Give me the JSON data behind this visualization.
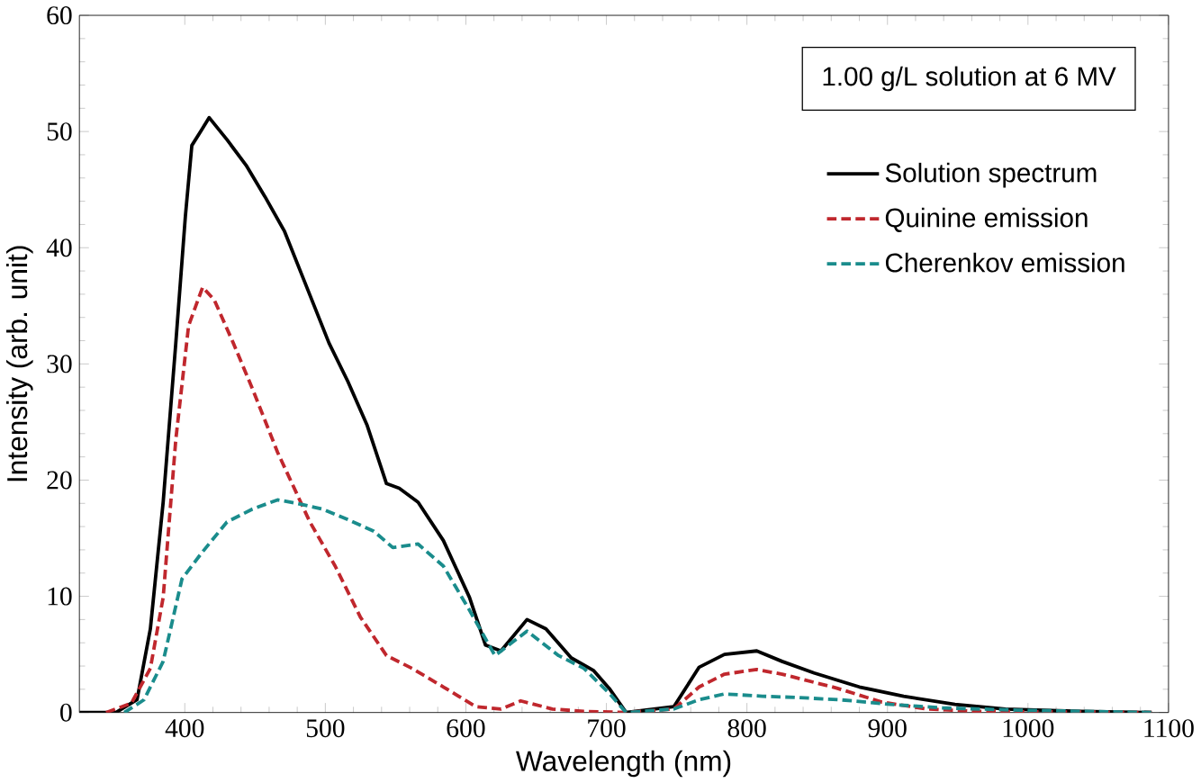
{
  "chart_data": {
    "type": "line",
    "xlabel": "Wavelength (nm)",
    "ylabel": "Intensity (arb. unit)",
    "annotations": [
      "1.00 g/L solution at 6 MV"
    ],
    "xlim": [
      325,
      1100
    ],
    "xticks": [
      400,
      500,
      600,
      700,
      800,
      900,
      1000,
      1100
    ],
    "ylim": [
      0,
      60
    ],
    "yticks": [
      0,
      10,
      20,
      30,
      40,
      50,
      60
    ],
    "grid": false,
    "legend": "top right",
    "marker": "none",
    "series": [
      {
        "name": "Solution spectrum",
        "color": "#000000",
        "line_style": "solid",
        "x": [
          325,
          351,
          366,
          375.5,
          384.6,
          393.6,
          400.4,
          405,
          411.8,
          417.3,
          430,
          443.6,
          457,
          471,
          484.5,
          502.6,
          516,
          529.8,
          543.5,
          552.6,
          566,
          584,
          602.6,
          614,
          625,
          643.5,
          657,
          675,
          691,
          702.5,
          714,
          748,
          766,
          784,
          807,
          825,
          847.8,
          880,
          911.5,
          948,
          984,
          1038,
          1088
        ],
        "values": [
          0,
          0,
          1.1,
          7.2,
          18.1,
          31.8,
          42.7,
          48.8,
          50.1,
          51.2,
          49.3,
          47.1,
          44.4,
          41.4,
          37.3,
          31.8,
          28.5,
          24.7,
          19.7,
          19.3,
          18.1,
          14.8,
          9.9,
          5.8,
          5.3,
          8.0,
          7.2,
          4.7,
          3.6,
          2.0,
          0,
          0.5,
          3.9,
          5.0,
          5.3,
          4.4,
          3.4,
          2.2,
          1.4,
          0.7,
          0.3,
          0.1,
          0
        ]
      },
      {
        "name": "Quinine emission",
        "color": "#c0272d",
        "line_style": "dashed",
        "x": [
          344,
          362,
          375.5,
          384.6,
          393.6,
          402.7,
          412.7,
          421,
          434.5,
          448,
          466,
          489,
          507,
          525,
          543.5,
          561.7,
          584,
          607,
          625,
          639,
          661.6,
          684,
          714,
          748,
          766,
          784,
          807,
          825,
          864,
          896,
          928,
          964,
          1088
        ],
        "values": [
          0,
          0.8,
          3.8,
          9.9,
          23.5,
          33.3,
          36.6,
          35.5,
          31.8,
          27.9,
          22.4,
          16.4,
          12.6,
          8.2,
          4.9,
          3.8,
          2.2,
          0.5,
          0.3,
          1.0,
          0.3,
          0.1,
          0,
          0.3,
          2.2,
          3.3,
          3.7,
          3.3,
          2.1,
          0.9,
          0.3,
          0.1,
          0
        ]
      },
      {
        "name": "Cherenkov emission",
        "color": "#1a8c8c",
        "line_style": "dashed",
        "x": [
          357,
          371,
          384.6,
          398,
          411.8,
          430,
          448,
          466,
          480,
          498,
          516,
          534.5,
          548,
          566,
          584,
          602.6,
          620.7,
          643.5,
          666,
          684,
          702.5,
          714,
          748,
          766,
          784,
          811,
          834,
          866,
          902,
          939,
          993,
          1088
        ],
        "values": [
          0,
          1.1,
          4.4,
          11.5,
          13.7,
          16.4,
          17.5,
          18.3,
          18.0,
          17.5,
          16.6,
          15.6,
          14.2,
          14.5,
          12.6,
          8.8,
          4.9,
          7.0,
          4.9,
          3.8,
          1.6,
          0,
          0.3,
          1.1,
          1.6,
          1.4,
          1.3,
          1.1,
          0.7,
          0.4,
          0.2,
          0
        ]
      }
    ]
  }
}
